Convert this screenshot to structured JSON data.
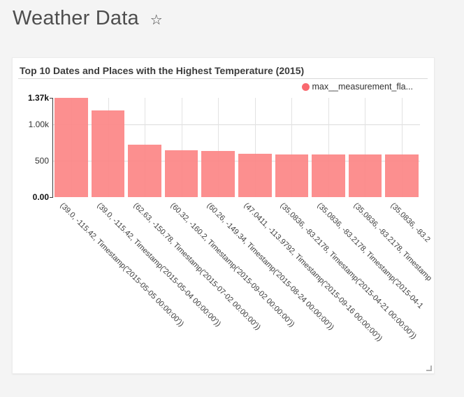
{
  "page": {
    "title": "Weather Data",
    "background_color": "#f4f4f4"
  },
  "card": {
    "title": "Top 10 Dates and Places with the Highest Temperature (2015)"
  },
  "chart_data": {
    "type": "bar",
    "title": "Top 10 Dates and Places with the Highest Temperature (2015)",
    "legend": {
      "label": "max__measurement_fla...",
      "dot_color": "#f9696f",
      "position": "top-right"
    },
    "categories": [
      "(39.0, -115.42, Timestamp('2015-05-05 00:00:00'))",
      "(39.0, -115.42, Timestamp('2015-05-04 00:00:00'))",
      "(62.63, -150.78, Timestamp('2015-07-02 00:00:00'))",
      "(60.32, -160.2, Timestamp('2015-09-02 00:00:00'))",
      "(60.26, -149.34, Timestamp('2015-08-24 00:00:00'))",
      "(47.0411, -113.9792, Timestamp('2015-09-16 00:00:00'))",
      "(35.0836, -83.2178, Timestamp('2015-04-21 00:00:00'))",
      "(35.0836, -83.2178, Timestamp('2015-04-1",
      "(35.0836, -83.2178, Timestamp",
      "(35.0836, -83.2"
    ],
    "series": [
      {
        "name": "max__measurement_fla...",
        "color": "#fc8686",
        "values": [
          1370,
          1200,
          725,
          645,
          635,
          600,
          590,
          590,
          590,
          590
        ]
      }
    ],
    "xlabel": "",
    "ylabel": "",
    "ylim": [
      0,
      1370
    ],
    "y_axis": {
      "ticks": [
        {
          "label": "1.37k",
          "value": 1370,
          "bold": true,
          "gridline": false,
          "tick_mark": true
        },
        {
          "label": "1.00k",
          "value": 1000,
          "bold": false,
          "gridline": true,
          "tick_mark": false
        },
        {
          "label": "500",
          "value": 500,
          "bold": false,
          "gridline": true,
          "tick_mark": false
        },
        {
          "label": "0.00",
          "value": 0,
          "bold": true,
          "gridline": false,
          "tick_mark": true
        }
      ]
    },
    "grid": true,
    "x_label_rotation_deg": 45
  }
}
